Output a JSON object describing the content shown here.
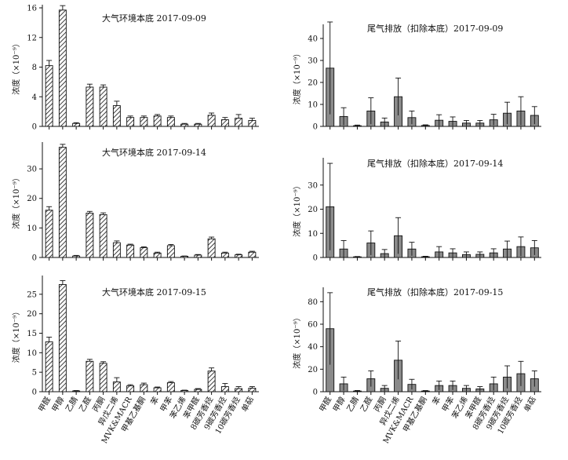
{
  "chart_data": {
    "type": "bar",
    "categories": [
      "甲醛",
      "甲醇",
      "乙腈",
      "乙醛",
      "丙酮",
      "异戊二烯",
      "MVK&MACR",
      "甲基乙基酮",
      "苯",
      "甲苯",
      "苯乙烯",
      "苯甲醛",
      "8碳芳香烃",
      "9碳芳香烃",
      "10碳芳香烃",
      "单萜"
    ],
    "ylabel": "浓度（×10⁻⁹）",
    "panels": [
      {
        "title": "大气环境本底 2017-09-09",
        "style": "hatched",
        "ylim": [
          0,
          16
        ],
        "yticks": [
          0,
          4,
          8,
          12,
          16
        ],
        "values": [
          8.2,
          15.7,
          0.4,
          5.3,
          5.3,
          2.8,
          1.2,
          1.2,
          1.4,
          1.2,
          0.3,
          0.3,
          1.5,
          0.9,
          1.1,
          0.8
        ],
        "errors": [
          0.7,
          0.6,
          0.1,
          0.4,
          0.3,
          0.6,
          0.2,
          0.2,
          0.2,
          0.2,
          0.1,
          0.1,
          0.3,
          0.3,
          0.5,
          0.3
        ]
      },
      {
        "title": "尾气排放（扣除本底）2017-09-09",
        "style": "gray",
        "ylim": [
          0,
          45
        ],
        "yticks": [
          0,
          10,
          20,
          30,
          40
        ],
        "values": [
          26.5,
          4.5,
          0.3,
          7,
          2,
          13.5,
          4,
          0.4,
          2.8,
          2.3,
          1.5,
          1.5,
          3,
          6,
          7,
          5
        ],
        "errors": [
          21,
          4,
          0.3,
          6,
          1.8,
          8.5,
          3,
          0.3,
          2.5,
          2,
          1.2,
          1.2,
          2.5,
          5,
          6.5,
          4
        ]
      },
      {
        "title": "大气环境本底 2017-09-14",
        "style": "hatched",
        "ylim": [
          0,
          38
        ],
        "yticks": [
          0,
          10,
          20,
          30
        ],
        "values": [
          16,
          37.3,
          0.5,
          15,
          14.5,
          5,
          4.2,
          3.3,
          1.5,
          4,
          0.4,
          0.8,
          6.3,
          1.5,
          0.9,
          1.8
        ],
        "errors": [
          1.2,
          1,
          0.2,
          0.6,
          0.6,
          0.6,
          0.3,
          0.3,
          0.3,
          0.4,
          0.1,
          0.2,
          0.6,
          0.3,
          0.2,
          0.3
        ]
      },
      {
        "title": "尾气排放（扣除本底）2017-09-14",
        "style": "gray",
        "ylim": [
          0,
          40
        ],
        "yticks": [
          0,
          10,
          20,
          30
        ],
        "values": [
          21,
          3.5,
          0.2,
          6,
          1.6,
          9,
          3.5,
          0.3,
          2.3,
          1.9,
          1.2,
          1.3,
          1.9,
          3.5,
          4.5,
          4
        ],
        "errors": [
          18,
          3.5,
          0.2,
          5,
          1.7,
          7.5,
          2.8,
          0.2,
          2.2,
          1.7,
          1.1,
          1,
          1.7,
          3.3,
          4,
          3
        ]
      },
      {
        "title": "大气环境本底 2017-09-15",
        "style": "hatched",
        "ylim": [
          0,
          29
        ],
        "yticks": [
          0,
          5,
          10,
          15,
          20,
          25
        ],
        "values": [
          12.8,
          27.5,
          0.2,
          7.8,
          7.3,
          2.5,
          1.5,
          1.8,
          1,
          2.3,
          0.3,
          0.6,
          5.3,
          1.3,
          0.8,
          0.9
        ],
        "errors": [
          1.2,
          1,
          0.1,
          0.5,
          0.4,
          1.1,
          0.3,
          0.4,
          0.2,
          0.3,
          0.1,
          0.2,
          0.8,
          0.8,
          0.5,
          0.4
        ]
      },
      {
        "title": "尾气排放（扣除本底）2017-09-15",
        "style": "gray",
        "ylim": [
          0,
          90
        ],
        "yticks": [
          0,
          20,
          40,
          60,
          80
        ],
        "values": [
          56,
          7,
          0.6,
          11.5,
          3,
          28,
          6.5,
          0.6,
          5.5,
          5.5,
          3,
          2.5,
          7,
          13,
          16,
          11.5
        ],
        "errors": [
          32,
          6,
          0.5,
          7,
          2.5,
          17,
          4.5,
          0.4,
          4,
          4,
          2.5,
          2,
          6,
          10,
          11,
          7
        ]
      }
    ]
  }
}
